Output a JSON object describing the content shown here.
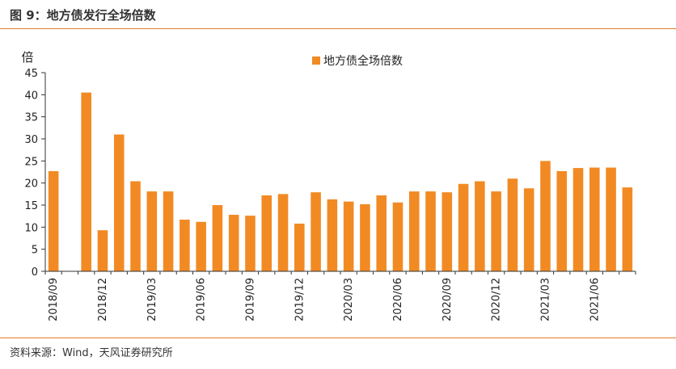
{
  "header": {
    "title": "图 9：地方债发行全场倍数"
  },
  "footer": {
    "source": "资料来源：Wind，天风证券研究所"
  },
  "chart_data": {
    "type": "bar",
    "ylabel": "倍",
    "ylim": [
      0,
      45
    ],
    "yticks": [
      0,
      5,
      10,
      15,
      20,
      25,
      30,
      35,
      40,
      45
    ],
    "legend_position": "top-center",
    "grid": false,
    "color": "#f28a24",
    "series": [
      {
        "name": "地方债全场倍数",
        "values": [
          22.7,
          null,
          40.5,
          9.3,
          31.0,
          20.4,
          18.1,
          18.1,
          11.7,
          11.2,
          15.0,
          12.8,
          12.6,
          17.2,
          17.5,
          10.8,
          17.9,
          16.3,
          15.8,
          15.2,
          17.2,
          15.6,
          18.1,
          18.1,
          17.9,
          19.8,
          20.4,
          18.1,
          21.0,
          18.8,
          25.0,
          22.7,
          23.4,
          23.5,
          23.5,
          19.0
        ]
      }
    ],
    "tick_labels": [
      {
        "index": 0,
        "label": "2018/09"
      },
      {
        "index": 3,
        "label": "2018/12"
      },
      {
        "index": 6,
        "label": "2019/03"
      },
      {
        "index": 9,
        "label": "2019/06"
      },
      {
        "index": 12,
        "label": "2019/09"
      },
      {
        "index": 15,
        "label": "2019/12"
      },
      {
        "index": 18,
        "label": "2020/03"
      },
      {
        "index": 21,
        "label": "2020/06"
      },
      {
        "index": 24,
        "label": "2020/09"
      },
      {
        "index": 27,
        "label": "2020/12"
      },
      {
        "index": 30,
        "label": "2021/03"
      },
      {
        "index": 33,
        "label": "2021/06"
      }
    ]
  }
}
